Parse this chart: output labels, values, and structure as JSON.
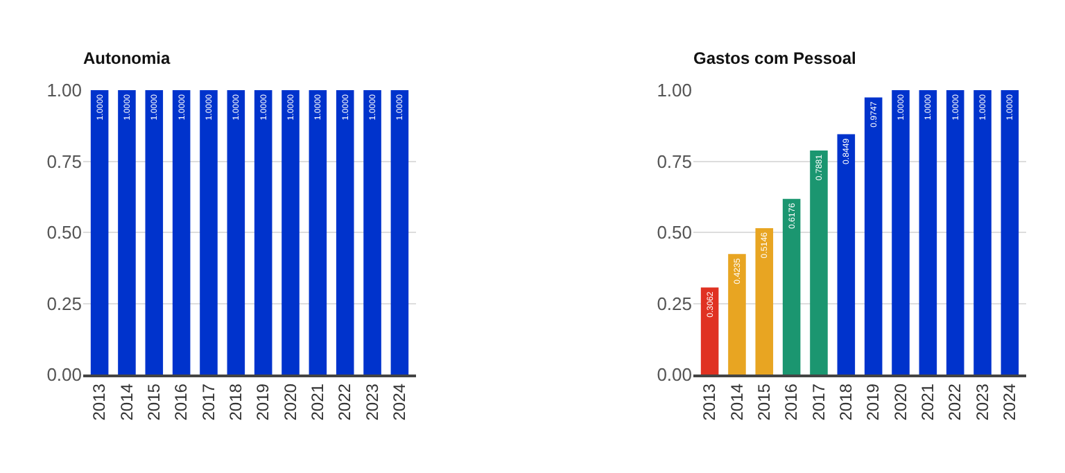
{
  "chart_data": [
    {
      "type": "bar",
      "title": "Autonomia",
      "categories": [
        "2013",
        "2014",
        "2015",
        "2016",
        "2017",
        "2018",
        "2019",
        "2020",
        "2021",
        "2022",
        "2023",
        "2024"
      ],
      "values": [
        1,
        1,
        1,
        1,
        1,
        1,
        1,
        1,
        1,
        1,
        1,
        1
      ],
      "colors": [
        "#0033cc",
        "#0033cc",
        "#0033cc",
        "#0033cc",
        "#0033cc",
        "#0033cc",
        "#0033cc",
        "#0033cc",
        "#0033cc",
        "#0033cc",
        "#0033cc",
        "#0033cc"
      ],
      "value_labels": [
        "1.0000",
        "1.0000",
        "1.0000",
        "1.0000",
        "1.0000",
        "1.0000",
        "1.0000",
        "1.0000",
        "1.0000",
        "1.0000",
        "1.0000",
        "1.0000"
      ],
      "ylim": [
        0,
        1
      ],
      "yticks": [
        {
          "value": 0,
          "label": "0.00"
        },
        {
          "value": 0.25,
          "label": "0.25"
        },
        {
          "value": 0.5,
          "label": "0.50"
        },
        {
          "value": 0.75,
          "label": "0.75"
        },
        {
          "value": 1,
          "label": "1.00"
        }
      ],
      "grid": "y"
    },
    {
      "type": "bar",
      "title": "Gastos com Pessoal",
      "categories": [
        "2013",
        "2014",
        "2015",
        "2016",
        "2017",
        "2018",
        "2019",
        "2020",
        "2021",
        "2022",
        "2023",
        "2024"
      ],
      "values": [
        0.3062,
        0.4235,
        0.5146,
        0.6176,
        0.7881,
        0.8449,
        0.9747,
        1,
        1,
        1,
        1,
        1
      ],
      "colors": [
        "#e03222",
        "#e8a522",
        "#e8a522",
        "#1b9670",
        "#1b9670",
        "#0033cc",
        "#0033cc",
        "#0033cc",
        "#0033cc",
        "#0033cc",
        "#0033cc",
        "#0033cc"
      ],
      "value_labels": [
        "0.3062",
        "0.4235",
        "0.5146",
        "0.6176",
        "0.7881",
        "0.8449",
        "0.9747",
        "1.0000",
        "1.0000",
        "1.0000",
        "1.0000",
        "1.0000"
      ],
      "ylim": [
        0,
        1
      ],
      "yticks": [
        {
          "value": 0,
          "label": "0.00"
        },
        {
          "value": 0.25,
          "label": "0.25"
        },
        {
          "value": 0.5,
          "label": "0.50"
        },
        {
          "value": 0.75,
          "label": "0.75"
        },
        {
          "value": 1,
          "label": "1.00"
        }
      ],
      "grid": "y"
    }
  ]
}
